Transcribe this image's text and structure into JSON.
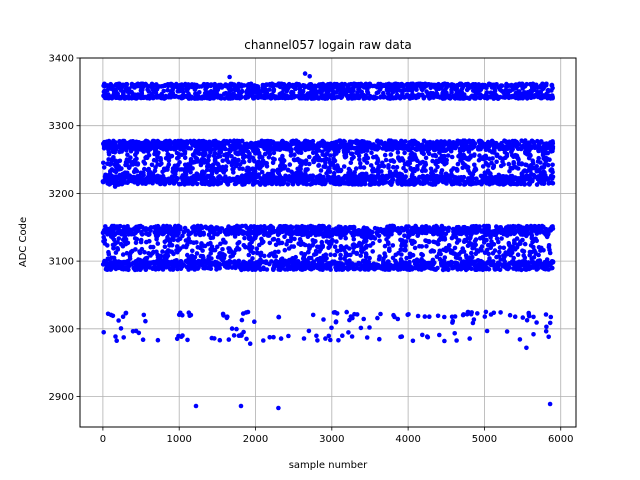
{
  "chart_data": {
    "type": "scatter",
    "title": "channel057 logain raw data",
    "xlabel": "sample number",
    "ylabel": "ADC Code",
    "xlim": [
      -300,
      6200
    ],
    "ylim": [
      2855,
      3400
    ],
    "xticks": [
      0,
      1000,
      2000,
      3000,
      4000,
      5000,
      6000
    ],
    "yticks": [
      2900,
      3000,
      3100,
      3200,
      3300,
      3400
    ],
    "grid": true,
    "marker_color": "#0000ff",
    "x_extent": [
      0,
      5900
    ],
    "bands": [
      {
        "center": 3350,
        "low": 3340,
        "high": 3362,
        "approx_samples": 1400
      },
      {
        "center": 3248,
        "low": 3213,
        "high": 3278,
        "approx_samples": 2800
      },
      {
        "center": 3125,
        "low": 3087,
        "high": 3152,
        "approx_samples": 2400
      },
      {
        "center": 3010,
        "low": 2982,
        "high": 3025,
        "approx_samples": 150
      }
    ],
    "outliers": [
      {
        "x": 1220,
        "y": 2886
      },
      {
        "x": 1810,
        "y": 2886
      },
      {
        "x": 2300,
        "y": 2883
      },
      {
        "x": 5860,
        "y": 2889
      },
      {
        "x": 2650,
        "y": 3377
      },
      {
        "x": 1660,
        "y": 3372
      },
      {
        "x": 2710,
        "y": 3373
      },
      {
        "x": 1930,
        "y": 2978
      },
      {
        "x": 5550,
        "y": 2972
      },
      {
        "x": 160,
        "y": 3210
      }
    ]
  }
}
